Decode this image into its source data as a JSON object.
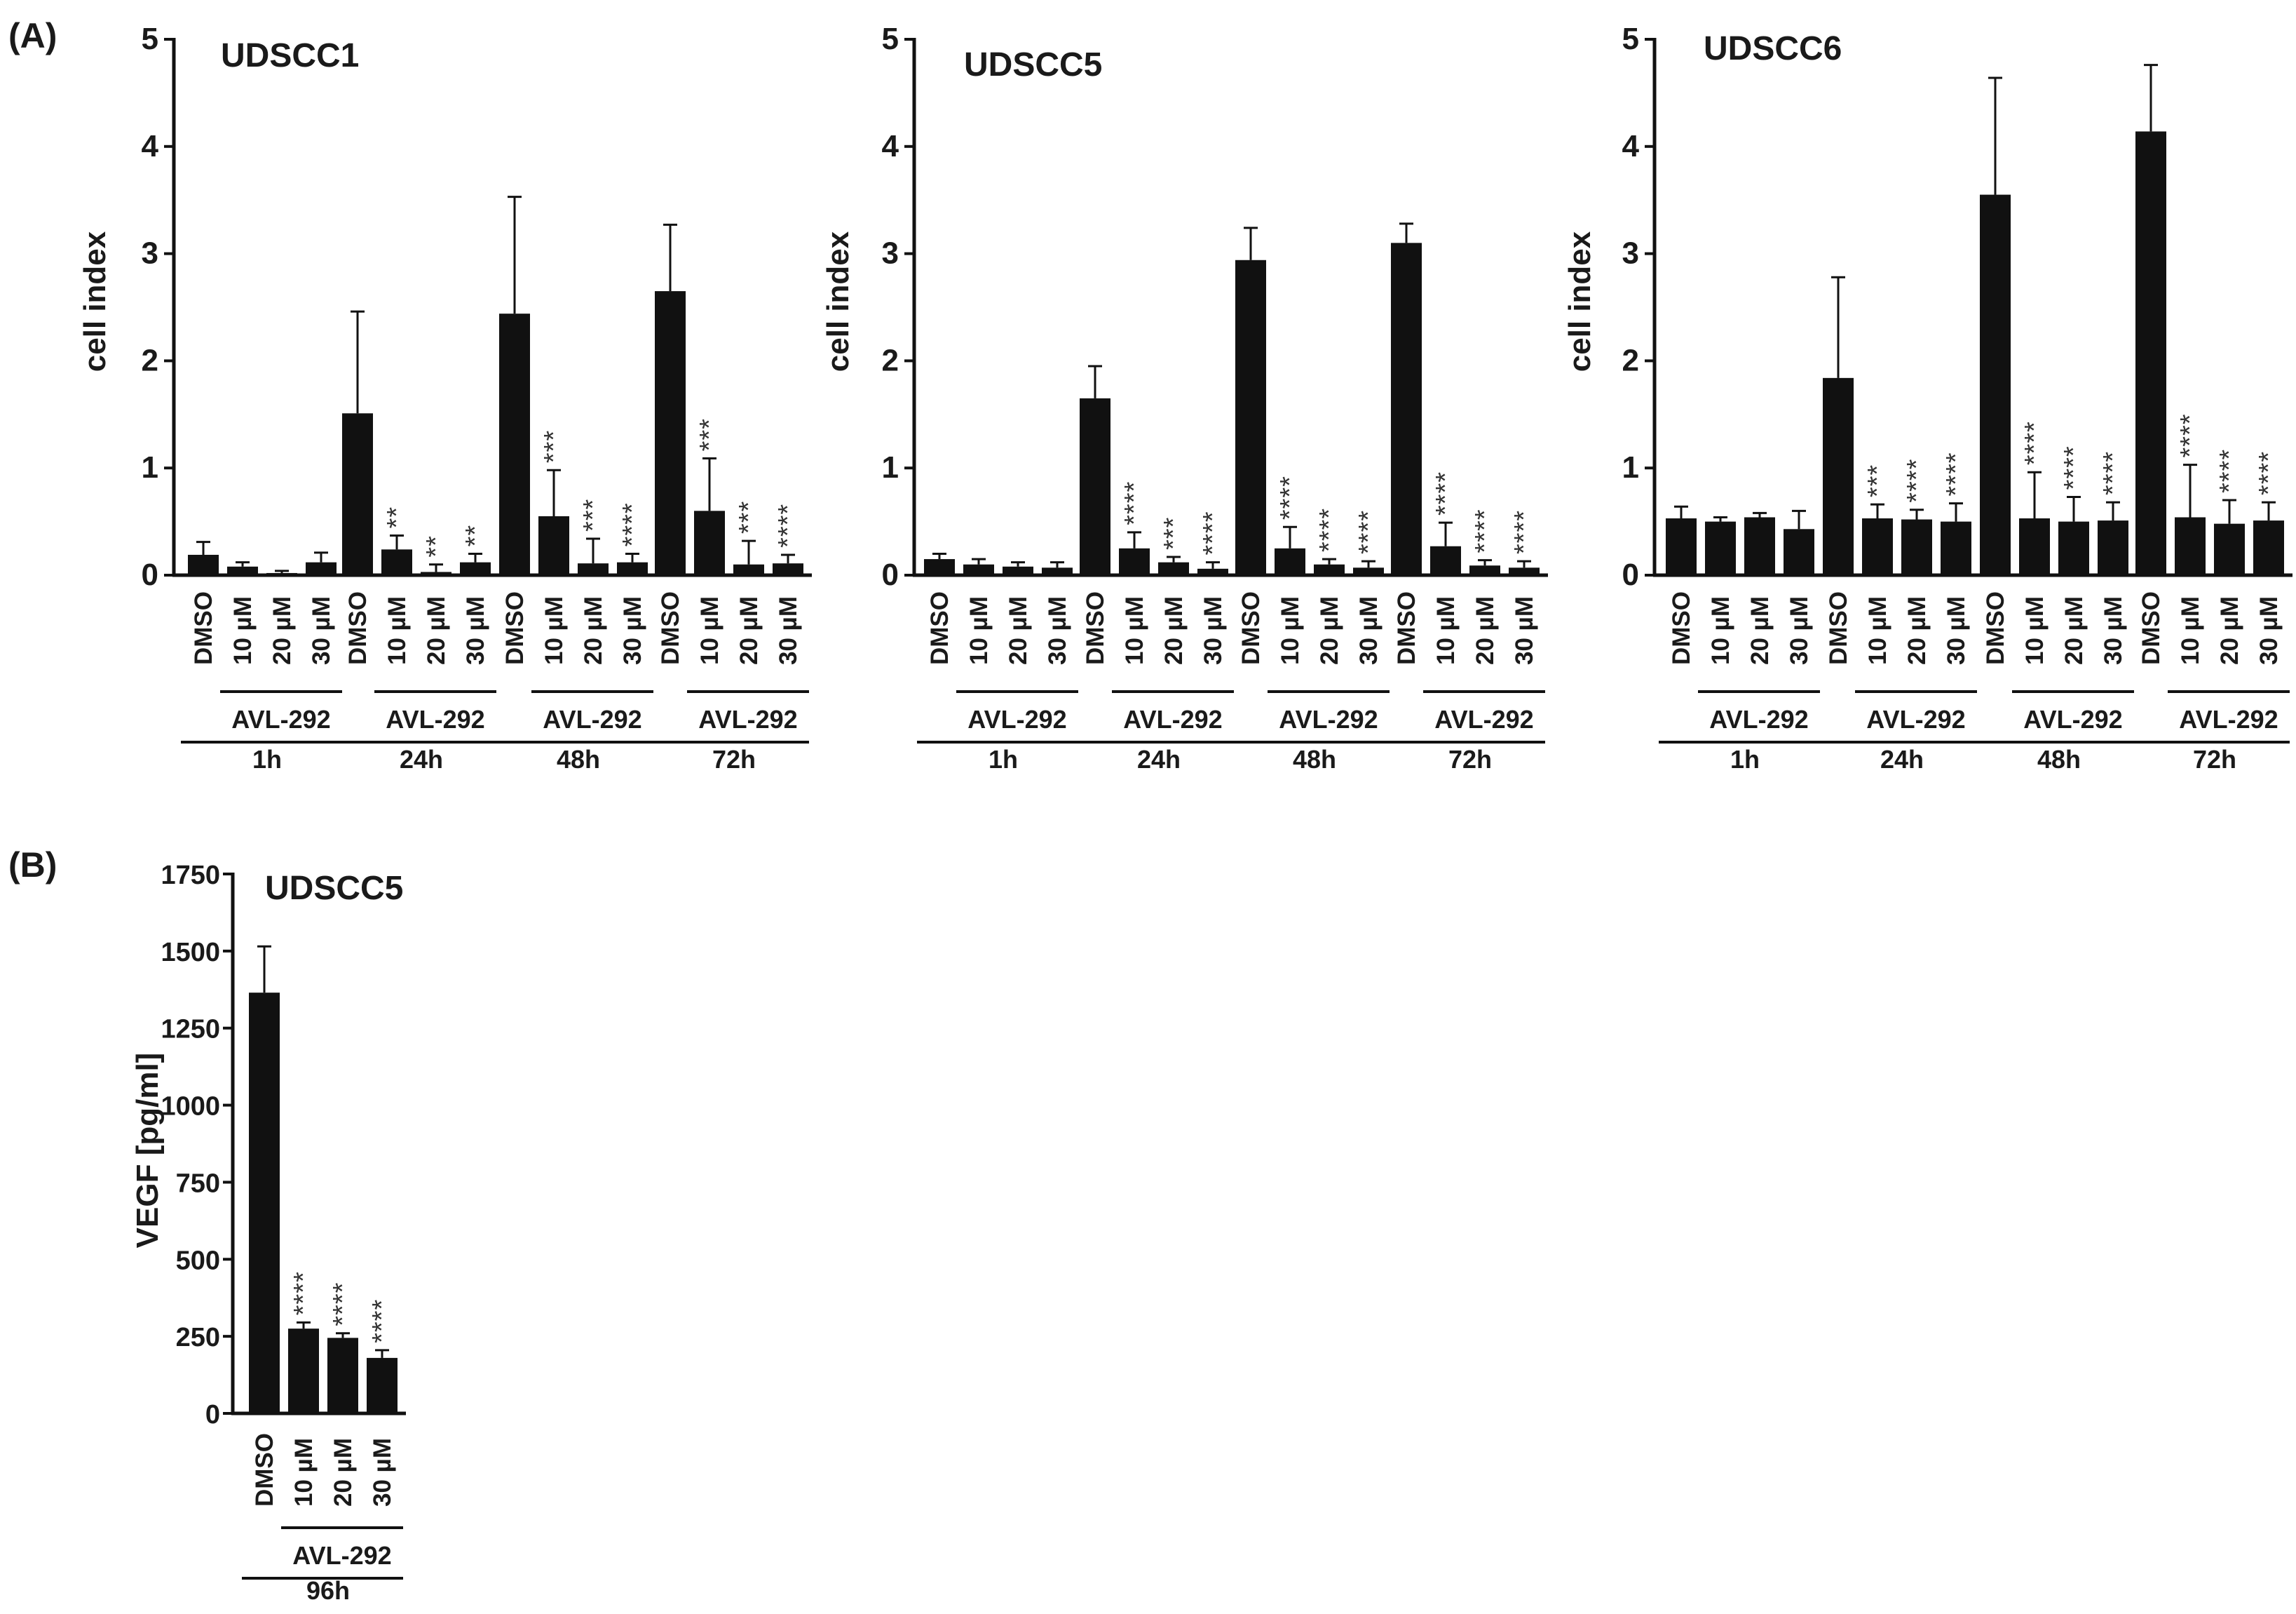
{
  "panel_labels": {
    "a": "(A)",
    "b": "(B)"
  },
  "colors": {
    "bar": "#111111",
    "axis": "#111111",
    "sig": "#333333",
    "background": "#ffffff"
  },
  "chart_data": [
    {
      "id": "udscc1",
      "type": "bar",
      "title": "UDSCC1",
      "ylabel": "cell index",
      "ylim": [
        0,
        5
      ],
      "yticks": [
        0,
        1,
        2,
        3,
        4,
        5
      ],
      "treatment_label": "AVL-292",
      "categories": [
        "DMSO",
        "10 µM",
        "20 µM",
        "30 µM"
      ],
      "groups": [
        {
          "time": "1h",
          "values": [
            0.19,
            0.08,
            0.02,
            0.12
          ],
          "errors": [
            0.12,
            0.04,
            0.02,
            0.09
          ],
          "sig": [
            "",
            "",
            "",
            ""
          ]
        },
        {
          "time": "24h",
          "values": [
            1.51,
            0.24,
            0.03,
            0.12
          ],
          "errors": [
            0.95,
            0.13,
            0.07,
            0.08
          ],
          "sig": [
            "",
            "**",
            "**",
            "**"
          ]
        },
        {
          "time": "48h",
          "values": [
            2.44,
            0.55,
            0.11,
            0.12
          ],
          "errors": [
            1.09,
            0.43,
            0.23,
            0.08
          ],
          "sig": [
            "",
            "***",
            "***",
            "****"
          ]
        },
        {
          "time": "72h",
          "values": [
            2.65,
            0.6,
            0.1,
            0.11
          ],
          "errors": [
            0.62,
            0.49,
            0.22,
            0.08
          ],
          "sig": [
            "",
            "***",
            "***",
            "****"
          ]
        }
      ]
    },
    {
      "id": "udscc5",
      "type": "bar",
      "title": "UDSCC5",
      "ylabel": "cell index",
      "ylim": [
        0,
        5
      ],
      "yticks": [
        0,
        1,
        2,
        3,
        4,
        5
      ],
      "treatment_label": "AVL-292",
      "categories": [
        "DMSO",
        "10 µM",
        "20 µM",
        "30 µM"
      ],
      "groups": [
        {
          "time": "1h",
          "values": [
            0.15,
            0.1,
            0.08,
            0.07
          ],
          "errors": [
            0.05,
            0.05,
            0.04,
            0.05
          ],
          "sig": [
            "",
            "",
            "",
            ""
          ]
        },
        {
          "time": "24h",
          "values": [
            1.65,
            0.25,
            0.12,
            0.06
          ],
          "errors": [
            0.3,
            0.15,
            0.05,
            0.06
          ],
          "sig": [
            "",
            "****",
            "***",
            "****"
          ]
        },
        {
          "time": "48h",
          "values": [
            2.94,
            0.25,
            0.1,
            0.07
          ],
          "errors": [
            0.3,
            0.2,
            0.05,
            0.06
          ],
          "sig": [
            "",
            "****",
            "****",
            "****"
          ]
        },
        {
          "time": "72h",
          "values": [
            3.1,
            0.27,
            0.09,
            0.07
          ],
          "errors": [
            0.18,
            0.22,
            0.05,
            0.06
          ],
          "sig": [
            "",
            "****",
            "****",
            "****"
          ]
        }
      ]
    },
    {
      "id": "udscc6",
      "type": "bar",
      "title": "UDSCC6",
      "ylabel": "cell index",
      "ylim": [
        0,
        5
      ],
      "yticks": [
        0,
        1,
        2,
        3,
        4,
        5
      ],
      "treatment_label": "AVL-292",
      "categories": [
        "DMSO",
        "10 µM",
        "20 µM",
        "30 µM"
      ],
      "groups": [
        {
          "time": "1h",
          "values": [
            0.53,
            0.5,
            0.54,
            0.43
          ],
          "errors": [
            0.11,
            0.04,
            0.04,
            0.17
          ],
          "sig": [
            "",
            "",
            "",
            ""
          ]
        },
        {
          "time": "24h",
          "values": [
            1.84,
            0.53,
            0.52,
            0.5
          ],
          "errors": [
            0.94,
            0.13,
            0.09,
            0.17
          ],
          "sig": [
            "",
            "***",
            "****",
            "****"
          ]
        },
        {
          "time": "48h",
          "values": [
            3.55,
            0.53,
            0.5,
            0.51
          ],
          "errors": [
            1.09,
            0.43,
            0.23,
            0.17
          ],
          "sig": [
            "",
            "****",
            "****",
            "****"
          ]
        },
        {
          "time": "72h",
          "values": [
            4.14,
            0.54,
            0.48,
            0.51
          ],
          "errors": [
            0.62,
            0.49,
            0.22,
            0.17
          ],
          "sig": [
            "",
            "****",
            "****",
            "****"
          ]
        }
      ]
    },
    {
      "id": "vegf",
      "type": "bar",
      "title": "UDSCC5",
      "ylabel": "VEGF [pg/ml]",
      "ylim": [
        0,
        1750
      ],
      "yticks": [
        0,
        250,
        500,
        750,
        1000,
        1250,
        1500,
        1750
      ],
      "treatment_label": "AVL-292",
      "categories": [
        "DMSO",
        "10 µM",
        "20 µM",
        "30 µM"
      ],
      "groups": [
        {
          "time": "96h",
          "values": [
            1365,
            275,
            245,
            180
          ],
          "errors": [
            150,
            20,
            15,
            25
          ],
          "sig": [
            "",
            "****",
            "****",
            "****"
          ]
        }
      ]
    }
  ]
}
